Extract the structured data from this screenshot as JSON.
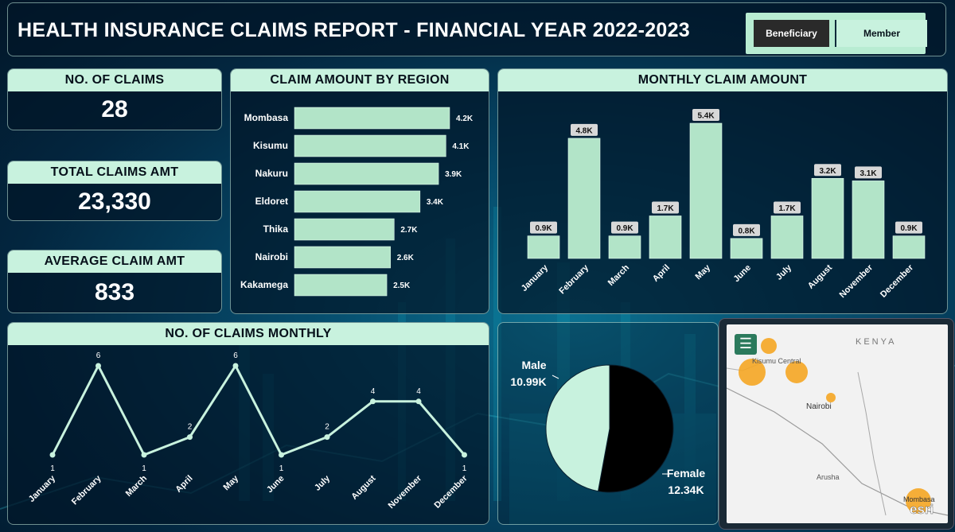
{
  "header": {
    "title": "HEALTH INSURANCE CLAIMS REPORT - FINANCIAL YEAR 2022-2023",
    "toggle": [
      "Beneficiary",
      "Member"
    ]
  },
  "kpis": [
    {
      "label": "NO. OF CLAIMS",
      "value": "28"
    },
    {
      "label": "TOTAL CLAIMS AMT",
      "value": "23,330"
    },
    {
      "label": "AVERAGE CLAIM AMT",
      "value": "833"
    }
  ],
  "region_chart_title": "CLAIM AMOUNT BY REGION",
  "monthly_amount_title": "MONTHLY CLAIM AMOUNT",
  "monthly_claims_title": "NO. OF CLAIMS MONTHLY",
  "map": {
    "country": "KENYA",
    "places": [
      "Kisumu Central",
      "Nairobi",
      "Arusha",
      "Mombasa"
    ],
    "logo": "esri",
    "bubble_color": "#f5a623"
  },
  "colors": {
    "bar": "#b2e4c8",
    "accent": "#c8f2de",
    "male": "#c8f2de",
    "female": "#000000"
  },
  "chart_data": [
    {
      "type": "bar",
      "orientation": "horizontal",
      "categories": [
        "Mombasa",
        "Kisumu",
        "Nakuru",
        "Eldoret",
        "Thika",
        "Nairobi",
        "Kakamega"
      ],
      "values": [
        4200,
        4100,
        3900,
        3400,
        2700,
        2600,
        2500
      ],
      "labels": [
        "4.2K",
        "4.1K",
        "3.9K",
        "3.4K",
        "2.7K",
        "2.6K",
        "2.5K"
      ]
    },
    {
      "type": "bar",
      "categories": [
        "January",
        "February",
        "March",
        "April",
        "May",
        "June",
        "July",
        "August",
        "November",
        "December"
      ],
      "values": [
        900,
        4800,
        900,
        1700,
        5400,
        800,
        1700,
        3200,
        3100,
        900
      ],
      "labels": [
        "0.9K",
        "4.8K",
        "0.9K",
        "1.7K",
        "5.4K",
        "0.8K",
        "1.7K",
        "3.2K",
        "3.1K",
        "0.9K"
      ]
    },
    {
      "type": "line",
      "categories": [
        "January",
        "February",
        "March",
        "April",
        "May",
        "June",
        "July",
        "August",
        "November",
        "December"
      ],
      "values": [
        1,
        6,
        1,
        2,
        6,
        1,
        2,
        4,
        4,
        1
      ]
    },
    {
      "type": "pie",
      "categories": [
        "Male",
        "Female"
      ],
      "values": [
        10.99,
        12.34
      ],
      "labels": [
        "10.99K",
        "12.34K"
      ]
    }
  ]
}
